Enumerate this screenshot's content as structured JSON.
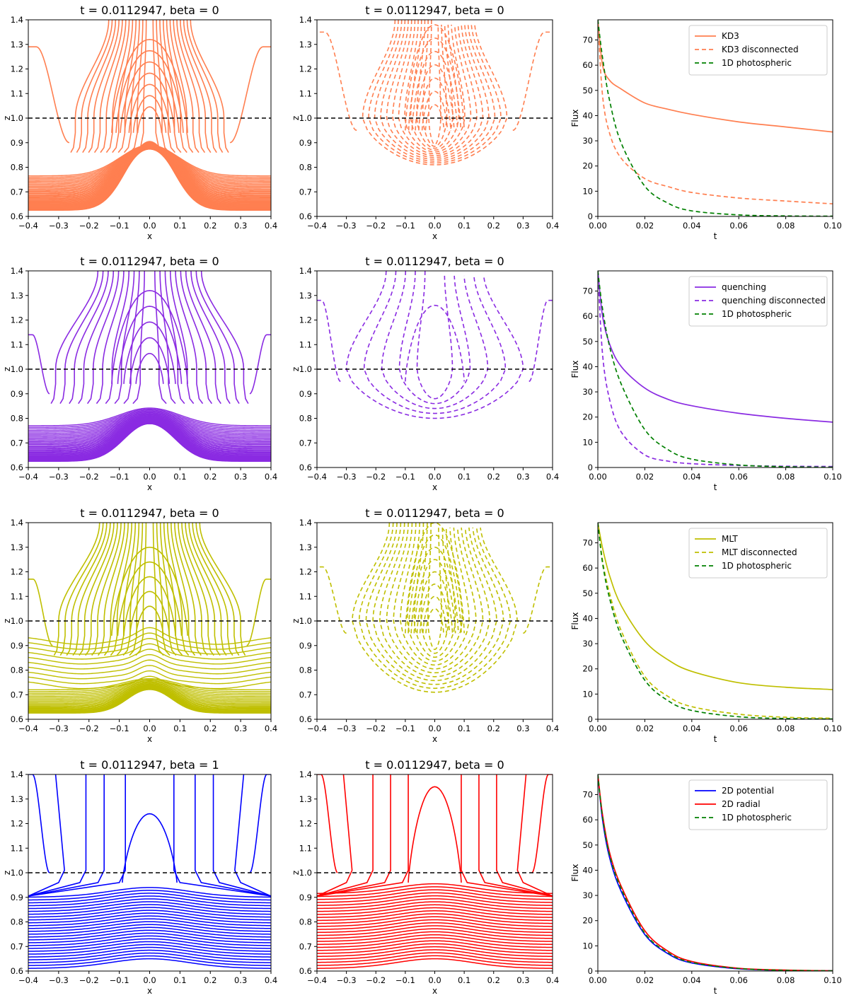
{
  "colors": {
    "kd3": "#ff7f50",
    "quenching": "#8a2be2",
    "mlt": "#bfbf00",
    "potential": "#0000ff",
    "radial": "#ff0000",
    "photospheric": "#008000",
    "photosphere_line": "#000000"
  },
  "chart_data": [
    {
      "type": "contour",
      "id": "kd3-field",
      "title": "t = 0.0112947,  beta = 0",
      "xlabel": "x",
      "ylabel": "z",
      "xlim": [
        -0.4,
        0.4
      ],
      "ylim": [
        0.6,
        1.4
      ],
      "xticks": [
        "−0.4",
        "−0.3",
        "−0.2",
        "−0.1",
        "0.0",
        "0.1",
        "0.2",
        "0.3",
        "0.4"
      ],
      "yticks": [
        "0.6",
        "0.7",
        "0.8",
        "0.9",
        "1.0",
        "1.1",
        "1.2",
        "1.3",
        "1.4"
      ],
      "photosphere_z": 1.0,
      "color_key": "kd3",
      "dashed": false,
      "style": "solid-full",
      "hump_height": 0.28,
      "hump_width": 0.075,
      "n_open": 12,
      "x_open_max": 0.245,
      "n_flat": 40,
      "top_flat_z": 0.765,
      "dip_z": 0.9,
      "side_arc_top": 1.29,
      "n_closed": 7,
      "closed_top_max": 1.32
    },
    {
      "type": "contour",
      "id": "kd3-disconnected",
      "title": "t = 0.0112947,  beta = 0",
      "xlabel": "x",
      "ylabel": "z",
      "xlim": [
        -0.4,
        0.4
      ],
      "ylim": [
        0.6,
        1.4
      ],
      "xticks": [
        "−0.4",
        "−0.3",
        "−0.2",
        "−0.1",
        "0.0",
        "0.1",
        "0.2",
        "0.3",
        "0.4"
      ],
      "yticks": [
        "0.6",
        "0.7",
        "0.8",
        "0.9",
        "1.0",
        "1.1",
        "1.2",
        "1.3",
        "1.4"
      ],
      "photosphere_z": 1.0,
      "color_key": "kd3",
      "dashed": true,
      "style": "disconnected",
      "n_open": 12,
      "x_open_max": 0.245,
      "bowl_depth": 0.81,
      "side_arc_top": 1.35,
      "n_closed": 7,
      "closed_top_max": 1.38
    },
    {
      "type": "line",
      "id": "kd3-flux",
      "xlabel": "t",
      "ylabel": "Flux",
      "xlim": [
        0.0,
        0.1
      ],
      "ylim": [
        0,
        78
      ],
      "xticks": [
        "0.00",
        "0.02",
        "0.04",
        "0.06",
        "0.08",
        "0.10"
      ],
      "yticks": [
        "0",
        "10",
        "20",
        "30",
        "40",
        "50",
        "60",
        "70"
      ],
      "x": [
        0.0,
        0.002,
        0.005,
        0.01,
        0.02,
        0.03,
        0.04,
        0.06,
        0.08,
        0.1
      ],
      "series": [
        {
          "name": "KD3",
          "color_key": "kd3",
          "dashed": false,
          "values": [
            78,
            60,
            54,
            50.5,
            45,
            42.5,
            40.5,
            37.5,
            35.5,
            33.5
          ]
        },
        {
          "name": "KD3 disconnected",
          "color_key": "kd3",
          "dashed": true,
          "values": [
            78,
            48,
            33,
            23,
            15,
            11.8,
            9.5,
            7.3,
            6.1,
            5
          ]
        },
        {
          "name": "1D photospheric",
          "color_key": "photospheric",
          "dashed": true,
          "values": [
            78,
            63,
            46,
            29,
            12,
            5.2,
            2.2,
            0.6,
            0.2,
            0.1
          ]
        }
      ],
      "legend": "top-right"
    },
    {
      "type": "contour",
      "id": "quenching-field",
      "title": "t = 0.0112947,  beta = 0",
      "xlabel": "x",
      "ylabel": "z",
      "xlim": [
        -0.4,
        0.4
      ],
      "ylim": [
        0.6,
        1.4
      ],
      "xticks": [
        "−0.4",
        "−0.3",
        "−0.2",
        "−0.1",
        "0.0",
        "0.1",
        "0.2",
        "0.3",
        "0.4"
      ],
      "yticks": [
        "0.6",
        "0.7",
        "0.8",
        "0.9",
        "1.0",
        "1.1",
        "1.2",
        "1.3",
        "1.4"
      ],
      "photosphere_z": 1.0,
      "color_key": "quenching",
      "dashed": false,
      "style": "solid-full",
      "hump_height": 0.16,
      "hump_width": 0.08,
      "n_open": 10,
      "x_open_max": 0.31,
      "n_flat": 36,
      "top_flat_z": 0.77,
      "dip_z": 0.84,
      "side_arc_top": 1.14,
      "n_closed": 5,
      "closed_top_max": 1.32
    },
    {
      "type": "contour",
      "id": "quenching-disconnected",
      "title": "t = 0.0112947,  beta = 0",
      "xlabel": "x",
      "ylabel": "z",
      "xlim": [
        -0.4,
        0.4
      ],
      "ylim": [
        0.6,
        1.4
      ],
      "xticks": [
        "−0.4",
        "−0.3",
        "−0.2",
        "−0.1",
        "0.0",
        "0.1",
        "0.2",
        "0.3",
        "0.4"
      ],
      "yticks": [
        "0.6",
        "0.7",
        "0.8",
        "0.9",
        "1.0",
        "1.1",
        "1.2",
        "1.3",
        "1.4"
      ],
      "photosphere_z": 1.0,
      "color_key": "quenching",
      "dashed": true,
      "style": "disconnected",
      "n_open": 5,
      "x_open_max": 0.3,
      "bowl_depth": 0.8,
      "side_arc_top": 1.28,
      "n_closed": 1,
      "closed_top_max": 1.26
    },
    {
      "type": "line",
      "id": "quenching-flux",
      "xlabel": "t",
      "ylabel": "Flux",
      "xlim": [
        0.0,
        0.1
      ],
      "ylim": [
        0,
        78
      ],
      "xticks": [
        "0.00",
        "0.02",
        "0.04",
        "0.06",
        "0.08",
        "0.10"
      ],
      "yticks": [
        "0",
        "10",
        "20",
        "30",
        "40",
        "50",
        "60",
        "70"
      ],
      "x": [
        0.0,
        0.002,
        0.005,
        0.01,
        0.02,
        0.03,
        0.04,
        0.06,
        0.08,
        0.1
      ],
      "series": [
        {
          "name": "quenching",
          "color_key": "quenching",
          "dashed": false,
          "values": [
            78,
            60,
            49,
            40,
            31.5,
            27,
            24.5,
            21.5,
            19.5,
            18
          ]
        },
        {
          "name": "quenching disconnected",
          "color_key": "quenching",
          "dashed": true,
          "values": [
            78,
            45,
            27,
            14,
            5,
            2.5,
            1.5,
            0.8,
            0.5,
            0.4
          ]
        },
        {
          "name": "1D photospheric",
          "color_key": "photospheric",
          "dashed": true,
          "values": [
            78,
            63,
            48,
            33,
            15,
            7,
            3.3,
            1,
            0.3,
            0.1
          ]
        }
      ],
      "legend": "top-right"
    },
    {
      "type": "contour",
      "id": "mlt-field",
      "title": "t = 0.0112947,  beta = 0",
      "xlabel": "x",
      "ylabel": "z",
      "xlim": [
        -0.4,
        0.4
      ],
      "ylim": [
        0.6,
        1.4
      ],
      "xticks": [
        "−0.4",
        "−0.3",
        "−0.2",
        "−0.1",
        "0.0",
        "0.1",
        "0.2",
        "0.3",
        "0.4"
      ],
      "yticks": [
        "0.6",
        "0.7",
        "0.8",
        "0.9",
        "1.0",
        "1.1",
        "1.2",
        "1.3",
        "1.4"
      ],
      "photosphere_z": 1.0,
      "color_key": "mlt",
      "dashed": false,
      "style": "solid-mlt",
      "hump_height": 0.1,
      "hump_width": 0.07,
      "n_open": 14,
      "x_open_max": 0.3,
      "n_flat": 22,
      "n_wave": 10,
      "side_arc_top": 1.17,
      "n_closed": 5,
      "closed_top_max": 1.3
    },
    {
      "type": "contour",
      "id": "mlt-disconnected",
      "title": "t = 0.0112947,  beta = 0",
      "xlabel": "x",
      "ylabel": "z",
      "xlim": [
        -0.4,
        0.4
      ],
      "ylim": [
        0.6,
        1.4
      ],
      "xticks": [
        "−0.4",
        "−0.3",
        "−0.2",
        "−0.1",
        "0.0",
        "0.1",
        "0.2",
        "0.3",
        "0.4"
      ],
      "yticks": [
        "0.6",
        "0.7",
        "0.8",
        "0.9",
        "1.0",
        "1.1",
        "1.2",
        "1.3",
        "1.4"
      ],
      "photosphere_z": 1.0,
      "color_key": "mlt",
      "dashed": true,
      "style": "disconnected",
      "n_open": 12,
      "x_open_max": 0.28,
      "bowl_depth": 0.71,
      "side_arc_top": 1.22,
      "n_closed": 8,
      "closed_top_max": 1.4
    },
    {
      "type": "line",
      "id": "mlt-flux",
      "xlabel": "t",
      "ylabel": "Flux",
      "xlim": [
        0.0,
        0.1
      ],
      "ylim": [
        0,
        78
      ],
      "xticks": [
        "0.00",
        "0.02",
        "0.04",
        "0.06",
        "0.08",
        "0.10"
      ],
      "yticks": [
        "0",
        "10",
        "20",
        "30",
        "40",
        "50",
        "60",
        "70"
      ],
      "x": [
        0.0,
        0.002,
        0.005,
        0.01,
        0.02,
        0.03,
        0.04,
        0.06,
        0.08,
        0.1
      ],
      "series": [
        {
          "name": "MLT",
          "color_key": "mlt",
          "dashed": false,
          "values": [
            78,
            68,
            57,
            45,
            31,
            23.5,
            19,
            14.5,
            12.7,
            11.8
          ]
        },
        {
          "name": "MLT disconnected",
          "color_key": "mlt",
          "dashed": true,
          "values": [
            78,
            63,
            50,
            35,
            17,
            9,
            5,
            2,
            0.8,
            0.4
          ]
        },
        {
          "name": "1D photospheric",
          "color_key": "photospheric",
          "dashed": true,
          "values": [
            78,
            62,
            48,
            33,
            15.5,
            7.3,
            3.5,
            1,
            0.3,
            0.1
          ]
        }
      ],
      "legend": "top-right"
    },
    {
      "type": "contour",
      "id": "potential-field",
      "title": "t = 0.0112947,  beta = 1",
      "xlabel": "x",
      "ylabel": "z",
      "xlim": [
        -0.4,
        0.4
      ],
      "ylim": [
        0.6,
        1.4
      ],
      "xticks": [
        "−0.4",
        "−0.3",
        "−0.2",
        "−0.1",
        "0.0",
        "0.1",
        "0.2",
        "0.3",
        "0.4"
      ],
      "yticks": [
        "0.6",
        "0.7",
        "0.8",
        "0.9",
        "1.0",
        "1.1",
        "1.2",
        "1.3",
        "1.4"
      ],
      "photosphere_z": 1.0,
      "color_key": "potential",
      "dashed": false,
      "style": "smooth",
      "n_layers": 26,
      "layer_top": 0.94,
      "layer_bottom": 0.62,
      "open_x": [
        0.08,
        0.15,
        0.21,
        0.28
      ],
      "side_arc_top": 1.24,
      "closed_top": 1.24
    },
    {
      "type": "contour",
      "id": "radial-field",
      "title": "t = 0.0112947,  beta = 0",
      "xlabel": "x",
      "ylabel": "z",
      "xlim": [
        -0.4,
        0.4
      ],
      "ylim": [
        0.6,
        1.4
      ],
      "xticks": [
        "−0.4",
        "−0.3",
        "−0.2",
        "−0.1",
        "0.0",
        "0.1",
        "0.2",
        "0.3",
        "0.4"
      ],
      "yticks": [
        "0.6",
        "0.7",
        "0.8",
        "0.9",
        "1.0",
        "1.1",
        "1.2",
        "1.3",
        "1.4"
      ],
      "photosphere_z": 1.0,
      "color_key": "radial",
      "dashed": false,
      "style": "smooth",
      "n_layers": 26,
      "layer_top": 0.955,
      "layer_bottom": 0.62,
      "open_x": [
        0.09,
        0.15,
        0.21,
        0.28
      ],
      "side_arc_top": 1.25,
      "closed_top": 1.35
    },
    {
      "type": "line",
      "id": "comparison-flux",
      "xlabel": "t",
      "ylabel": "Flux",
      "xlim": [
        0.0,
        0.1
      ],
      "ylim": [
        0,
        78
      ],
      "xticks": [
        "0.00",
        "0.02",
        "0.04",
        "0.06",
        "0.08",
        "0.10"
      ],
      "yticks": [
        "0",
        "10",
        "20",
        "30",
        "40",
        "50",
        "60",
        "70"
      ],
      "x": [
        0.0,
        0.002,
        0.005,
        0.01,
        0.02,
        0.03,
        0.04,
        0.06,
        0.08,
        0.1
      ],
      "series": [
        {
          "name": "2D potential",
          "color_key": "potential",
          "dashed": false,
          "values": [
            78,
            60,
            45,
            31.5,
            14.5,
            6.8,
            3.2,
            0.9,
            0.3,
            0.1
          ]
        },
        {
          "name": "2D radial",
          "color_key": "radial",
          "dashed": false,
          "values": [
            78,
            62,
            47,
            33.5,
            16,
            7.8,
            3.8,
            1.1,
            0.4,
            0.1
          ]
        },
        {
          "name": "1D photospheric",
          "color_key": "photospheric",
          "dashed": true,
          "values": [
            78,
            61,
            46,
            32.5,
            15,
            7.2,
            3.4,
            1,
            0.3,
            0.1
          ]
        }
      ],
      "legend": "top-right"
    }
  ]
}
